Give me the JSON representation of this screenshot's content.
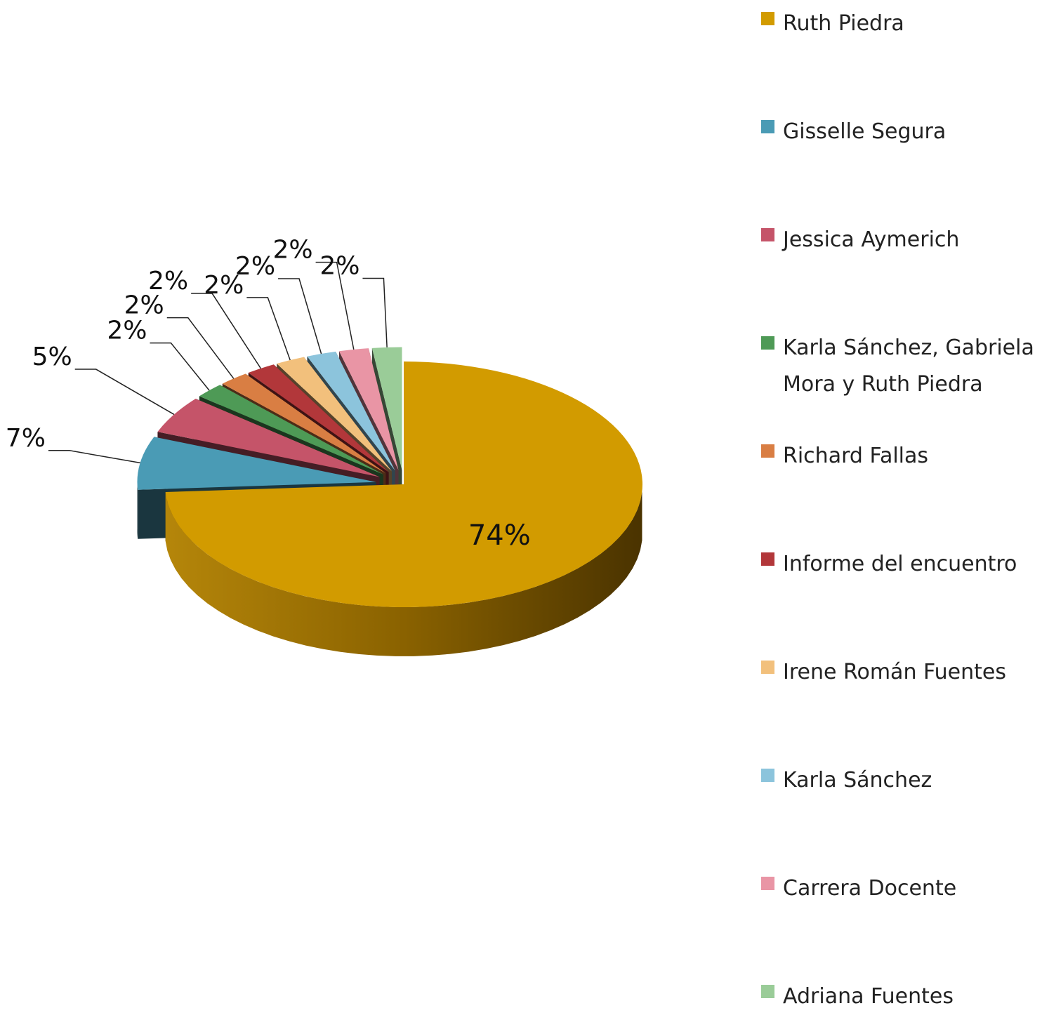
{
  "chart_data": {
    "type": "pie",
    "style": "3d-exploded",
    "legend_position": "right",
    "categories": [
      "Ruth Piedra",
      "Gisselle Segura",
      "Jessica Aymerich",
      "Karla Sánchez, Gabriela Mora y Ruth Piedra",
      "Richard Fallas",
      "Informe del encuentro",
      "Irene Román Fuentes",
      "Karla Sánchez",
      "Carrera Docente",
      "Adriana Fuentes"
    ],
    "values": [
      74,
      7,
      5,
      2,
      2,
      2,
      2,
      2,
      2,
      2
    ],
    "labels": [
      "74%",
      "7%",
      "5%",
      "2%",
      "2%",
      "2%",
      "2%",
      "2%",
      "2%",
      "2%"
    ],
    "colors": [
      "#D29B00",
      "#4A9BB5",
      "#C55469",
      "#4E9A56",
      "#D97E43",
      "#B2373A",
      "#F2C07C",
      "#8CC4DC",
      "#E995A5",
      "#9ACC98"
    ]
  }
}
